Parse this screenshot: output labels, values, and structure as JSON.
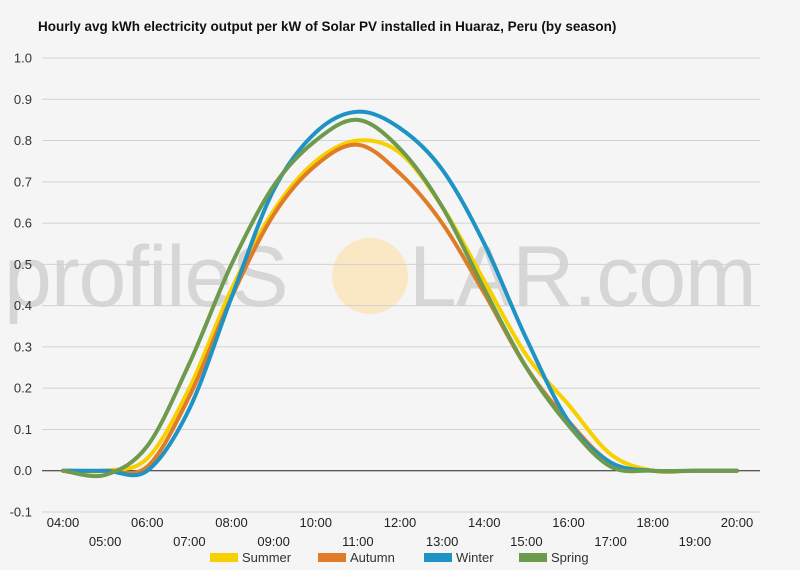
{
  "chart_data": {
    "type": "line",
    "title": "Hourly avg kWh electricity output per kW of Solar PV installed in Huaraz, Peru (by season)",
    "xlabel": "",
    "ylabel": "",
    "ylim": [
      -0.1,
      1.0
    ],
    "y_ticks": [
      -0.1,
      0.0,
      0.1,
      0.2,
      0.3,
      0.4,
      0.5,
      0.6,
      0.7,
      0.8,
      0.9,
      1.0
    ],
    "y_tick_labels": [
      "-0.1",
      "0.0",
      "0.1",
      "0.2",
      "0.3",
      "0.4",
      "0.5",
      "0.6",
      "0.7",
      "0.8",
      "0.9",
      "1.0"
    ],
    "categories": [
      "04:00",
      "05:00",
      "06:00",
      "07:00",
      "08:00",
      "09:00",
      "10:00",
      "11:00",
      "12:00",
      "13:00",
      "14:00",
      "15:00",
      "16:00",
      "17:00",
      "18:00",
      "19:00",
      "20:00"
    ],
    "grid": true,
    "legend_position": "bottom",
    "series": [
      {
        "name": "Summer",
        "color": "#f6d000",
        "values": [
          0.0,
          0.0,
          0.03,
          0.2,
          0.44,
          0.63,
          0.75,
          0.8,
          0.77,
          0.64,
          0.46,
          0.28,
          0.16,
          0.04,
          0.0,
          0.0,
          0.0
        ]
      },
      {
        "name": "Autumn",
        "color": "#e07b28",
        "values": [
          0.0,
          0.0,
          0.01,
          0.18,
          0.42,
          0.62,
          0.74,
          0.79,
          0.72,
          0.6,
          0.43,
          0.25,
          0.12,
          0.02,
          0.0,
          0.0,
          0.0
        ]
      },
      {
        "name": "Winter",
        "color": "#1f93c4",
        "values": [
          0.0,
          0.0,
          0.0,
          0.15,
          0.42,
          0.68,
          0.82,
          0.87,
          0.83,
          0.73,
          0.55,
          0.32,
          0.12,
          0.02,
          0.0,
          0.0,
          0.0
        ]
      },
      {
        "name": "Spring",
        "color": "#6e9a4e",
        "values": [
          0.0,
          -0.01,
          0.06,
          0.26,
          0.5,
          0.69,
          0.8,
          0.85,
          0.78,
          0.64,
          0.44,
          0.25,
          0.11,
          0.01,
          0.0,
          0.0,
          0.0
        ]
      }
    ]
  },
  "watermark": {
    "text_left": "profileS",
    "text_right": "LAR.com",
    "sun_color": "#fae8c4"
  }
}
